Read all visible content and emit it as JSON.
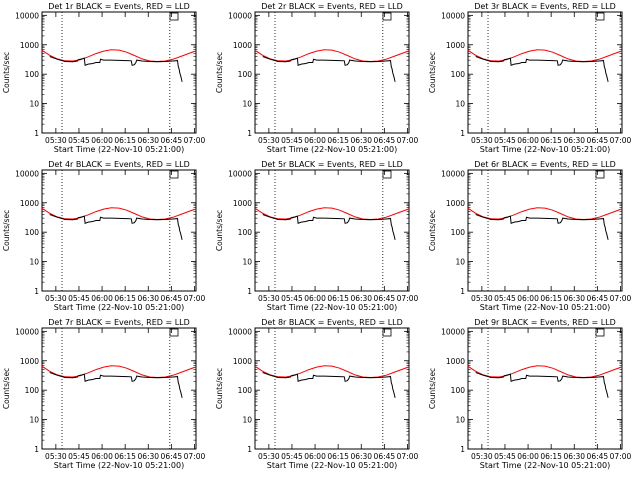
{
  "chart_data": {
    "type": "line",
    "panels": [
      {
        "title": "Det 1r BLACK = Events, RED = LLD"
      },
      {
        "title": "Det 2r BLACK = Events, RED = LLD"
      },
      {
        "title": "Det 3r BLACK = Events, RED = LLD"
      },
      {
        "title": "Det 4r BLACK = Events, RED = LLD"
      },
      {
        "title": "Det 5r BLACK = Events, RED = LLD"
      },
      {
        "title": "Det 6r BLACK = Events, RED = LLD"
      },
      {
        "title": "Det 7r BLACK = Events, RED = LLD"
      },
      {
        "title": "Det 8r BLACK = Events, RED = LLD"
      },
      {
        "title": "Det 9r BLACK = Events, RED = LLD"
      }
    ],
    "ylabel": "Counts/sec",
    "xlabel": "Start Time (22-Nov-10 05:21:00)",
    "y_scale": "log",
    "ylim": [
      1,
      13000
    ],
    "y_ticks": [
      1,
      10,
      100,
      1000,
      10000
    ],
    "y_tick_labels": [
      "1",
      "10",
      "100",
      "1000",
      "10000"
    ],
    "x_range_min": [
      0,
      100
    ],
    "x_tick_minutes": [
      9,
      24,
      39,
      54,
      69,
      84,
      99
    ],
    "x_tick_labels": [
      "05:30",
      "05:45",
      "06:00",
      "06:15",
      "06:30",
      "06:45",
      "07:00"
    ],
    "dotted_vlines_min": [
      13,
      83
    ],
    "series": [
      {
        "name": "LLD",
        "color": "#ff0000",
        "x": [
          0,
          5,
          10,
          15,
          20,
          25,
          30,
          35,
          40,
          45,
          50,
          55,
          60,
          65,
          70,
          75,
          80,
          85,
          90,
          95,
          100
        ],
        "y": [
          650,
          440,
          330,
          285,
          280,
          310,
          390,
          500,
          610,
          680,
          660,
          560,
          430,
          330,
          280,
          270,
          280,
          320,
          400,
          500,
          620
        ]
      },
      {
        "name": "Events",
        "color": "#000000",
        "x": [
          5,
          10,
          15,
          20,
          23,
          23.5,
          26,
          27.5,
          28,
          30,
          33,
          35,
          37.5,
          38,
          40,
          45,
          50,
          55,
          58,
          58.5,
          60,
          61,
          61.5,
          65,
          70,
          75,
          80,
          85,
          88,
          88.5,
          89,
          89.5,
          90,
          90.5,
          91
        ],
        "y": [
          400,
          320,
          270,
          265,
          280,
          310,
          330,
          350,
          200,
          220,
          230,
          250,
          250,
          320,
          300,
          300,
          295,
          290,
          285,
          200,
          210,
          250,
          300,
          280,
          270,
          265,
          270,
          280,
          290,
          180,
          150,
          110,
          90,
          70,
          55
        ]
      }
    ]
  }
}
